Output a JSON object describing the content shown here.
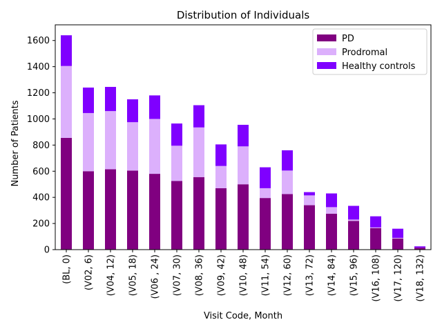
{
  "chart_data": {
    "type": "bar",
    "stacked": true,
    "title": "Distribution of Individuals",
    "xlabel": "Visit Code, Month",
    "ylabel": "Number of Patients",
    "ylim": [
      0,
      1720
    ],
    "yticks": [
      0,
      200,
      400,
      600,
      800,
      1000,
      1200,
      1400,
      1600
    ],
    "categories": [
      "(BL, 0)",
      "(V02, 6)",
      "(V04, 12)",
      "(V05, 18)",
      "(V06 , 24)",
      "(V07, 30)",
      "(V08, 36)",
      "(V09, 42)",
      "(V10, 48)",
      "(V11, 54)",
      "(V12, 60)",
      "(V13, 72)",
      "(V14, 84)",
      "(V15, 96)",
      "(V16, 108)",
      "(V17, 120)",
      "(V18, 132)"
    ],
    "series": [
      {
        "name": "PD",
        "color": "#800080",
        "values": [
          855,
          600,
          615,
          605,
          580,
          525,
          555,
          470,
          500,
          395,
          425,
          340,
          275,
          220,
          165,
          85,
          15
        ]
      },
      {
        "name": "Prodromal",
        "color": "#dcb0fc",
        "values": [
          550,
          445,
          445,
          370,
          420,
          270,
          380,
          170,
          290,
          75,
          180,
          75,
          50,
          10,
          5,
          5,
          0
        ]
      },
      {
        "name": "Healthy controls",
        "color": "#7f00ff",
        "values": [
          235,
          195,
          185,
          175,
          180,
          170,
          170,
          165,
          165,
          160,
          155,
          25,
          105,
          105,
          85,
          70,
          10
        ]
      }
    ],
    "legend_position": "top-right",
    "grid": false
  }
}
